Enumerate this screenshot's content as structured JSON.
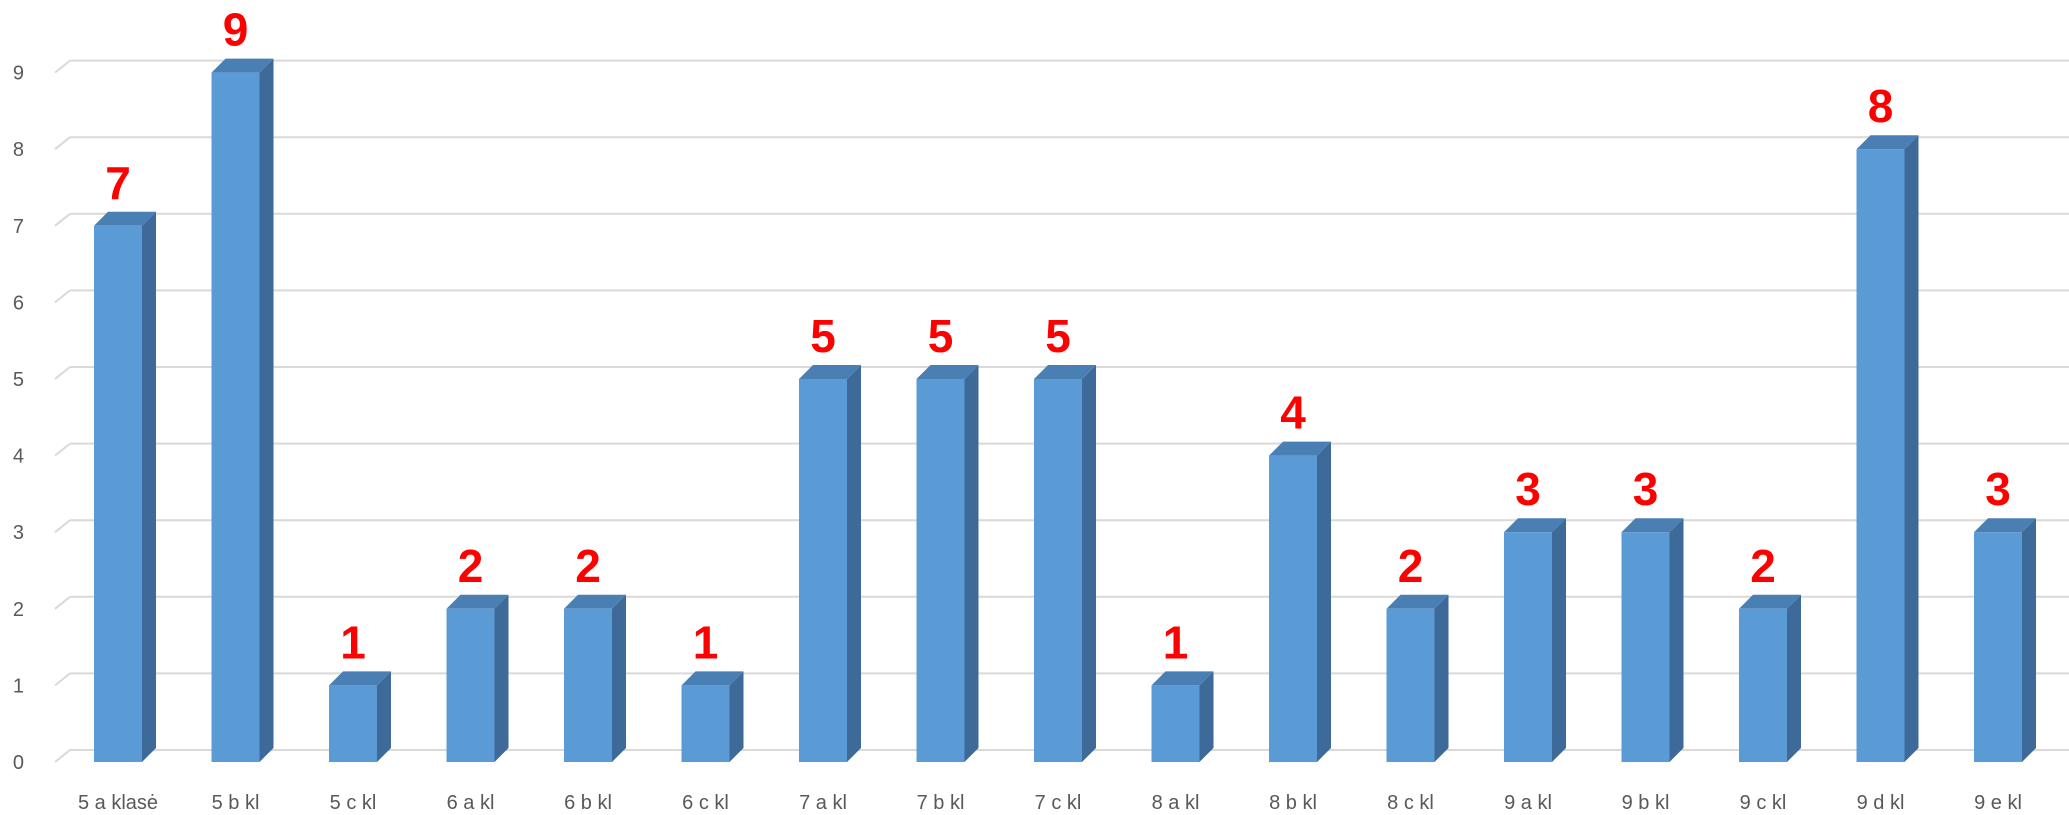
{
  "chart_data": {
    "type": "bar",
    "categories": [
      "5 a klasė",
      "5 b kl",
      "5 c kl",
      "6 a kl",
      "6 b kl",
      "6 c kl",
      "7 a kl",
      "7 b kl",
      "7 c kl",
      "8 a kl",
      "8 b kl",
      "8 c kl",
      "9 a kl",
      "9 b kl",
      "9 c kl",
      "9 d kl",
      "9 e kl"
    ],
    "values": [
      7,
      9,
      1,
      2,
      2,
      1,
      5,
      5,
      5,
      1,
      4,
      2,
      3,
      3,
      2,
      8,
      3
    ],
    "ylim": [
      0,
      9
    ],
    "yticks": [
      "0",
      "1",
      "2",
      "3",
      "4",
      "5",
      "6",
      "7",
      "8",
      "9"
    ],
    "grid": true,
    "style": "3d-column",
    "colors": {
      "bar_front": "#5b9bd5",
      "bar_side": "#3d6a98",
      "bar_top": "#4a7fb3",
      "gridline": "#d9d9d9",
      "data_label": "#ff0000",
      "tick_text": "#595959"
    }
  }
}
